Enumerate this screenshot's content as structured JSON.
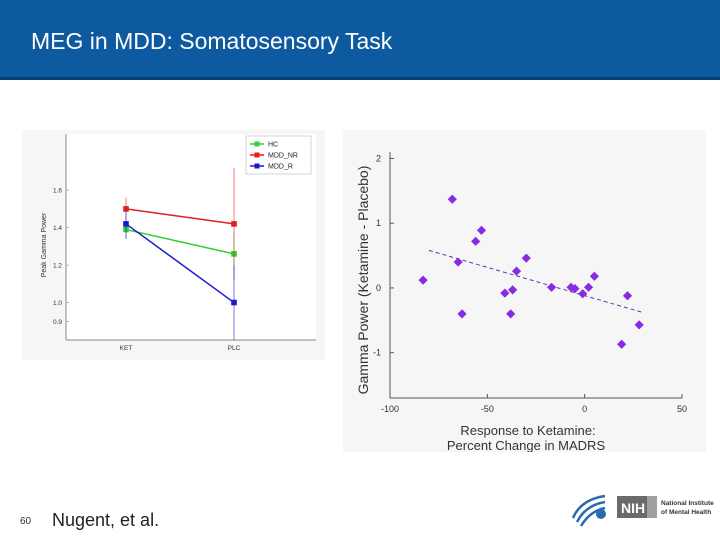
{
  "slide": {
    "title": "MEG in MDD: Somatosensory Task",
    "page_number": "60",
    "citation": "Nugent, et al.",
    "header_color": "#0e5aa0"
  },
  "logo": {
    "icon": "hhs-eagle-icon",
    "nih_text": "NIH",
    "institute_line1": "National Institute",
    "institute_line2": "of Mental Health"
  },
  "chart_data": [
    {
      "type": "line",
      "ylabel": "Peak Gamma Power",
      "xlabel": "",
      "categories": [
        "KET",
        "PLC"
      ],
      "ylim": [
        0.8,
        1.9
      ],
      "yticks": [
        "0.9",
        "1.0",
        "1.2",
        "1.4",
        "1.6"
      ],
      "legend_position": "top-right",
      "series": [
        {
          "name": "HC",
          "color": "#2fd02f",
          "values": [
            1.39,
            1.26
          ],
          "err": [
            0.05,
            0.12
          ]
        },
        {
          "name": "MDD_NR",
          "color": "#e02020",
          "values": [
            1.5,
            1.42
          ],
          "err": [
            0.06,
            0.3
          ]
        },
        {
          "name": "MDD_R",
          "color": "#1a1acc",
          "values": [
            1.42,
            1.0
          ],
          "err": [
            0.08,
            0.2
          ]
        }
      ]
    },
    {
      "type": "scatter",
      "xlabel_line1": "Response to Ketamine:",
      "xlabel_line2": "Percent Change in MADRS",
      "ylabel": "Gamma Power (Ketamine - Placebo)",
      "xlim": [
        -100,
        50
      ],
      "ylim": [
        -1.7,
        2.1
      ],
      "xticks": [
        "-100",
        "-50",
        "0",
        "50"
      ],
      "yticks": [
        "2",
        "1",
        "0",
        "-1"
      ],
      "marker_color": "#8a2be2",
      "trendline": {
        "x": [
          -80,
          30
        ],
        "y": [
          0.58,
          -0.38
        ]
      },
      "points": [
        {
          "x": -83,
          "y": 0.12
        },
        {
          "x": -68,
          "y": 1.37
        },
        {
          "x": -65,
          "y": 0.4
        },
        {
          "x": -63,
          "y": -0.4
        },
        {
          "x": -56,
          "y": 0.72
        },
        {
          "x": -53,
          "y": 0.89
        },
        {
          "x": -41,
          "y": -0.08
        },
        {
          "x": -38,
          "y": -0.4
        },
        {
          "x": -37,
          "y": -0.03
        },
        {
          "x": -35,
          "y": 0.26
        },
        {
          "x": -30,
          "y": 0.46
        },
        {
          "x": -17,
          "y": 0.01
        },
        {
          "x": -7,
          "y": 0.01
        },
        {
          "x": -5,
          "y": -0.01
        },
        {
          "x": -1,
          "y": -0.09
        },
        {
          "x": 2,
          "y": 0.01
        },
        {
          "x": 5,
          "y": 0.18
        },
        {
          "x": 19,
          "y": -0.87
        },
        {
          "x": 22,
          "y": -0.12
        },
        {
          "x": 28,
          "y": -0.57
        }
      ]
    }
  ]
}
